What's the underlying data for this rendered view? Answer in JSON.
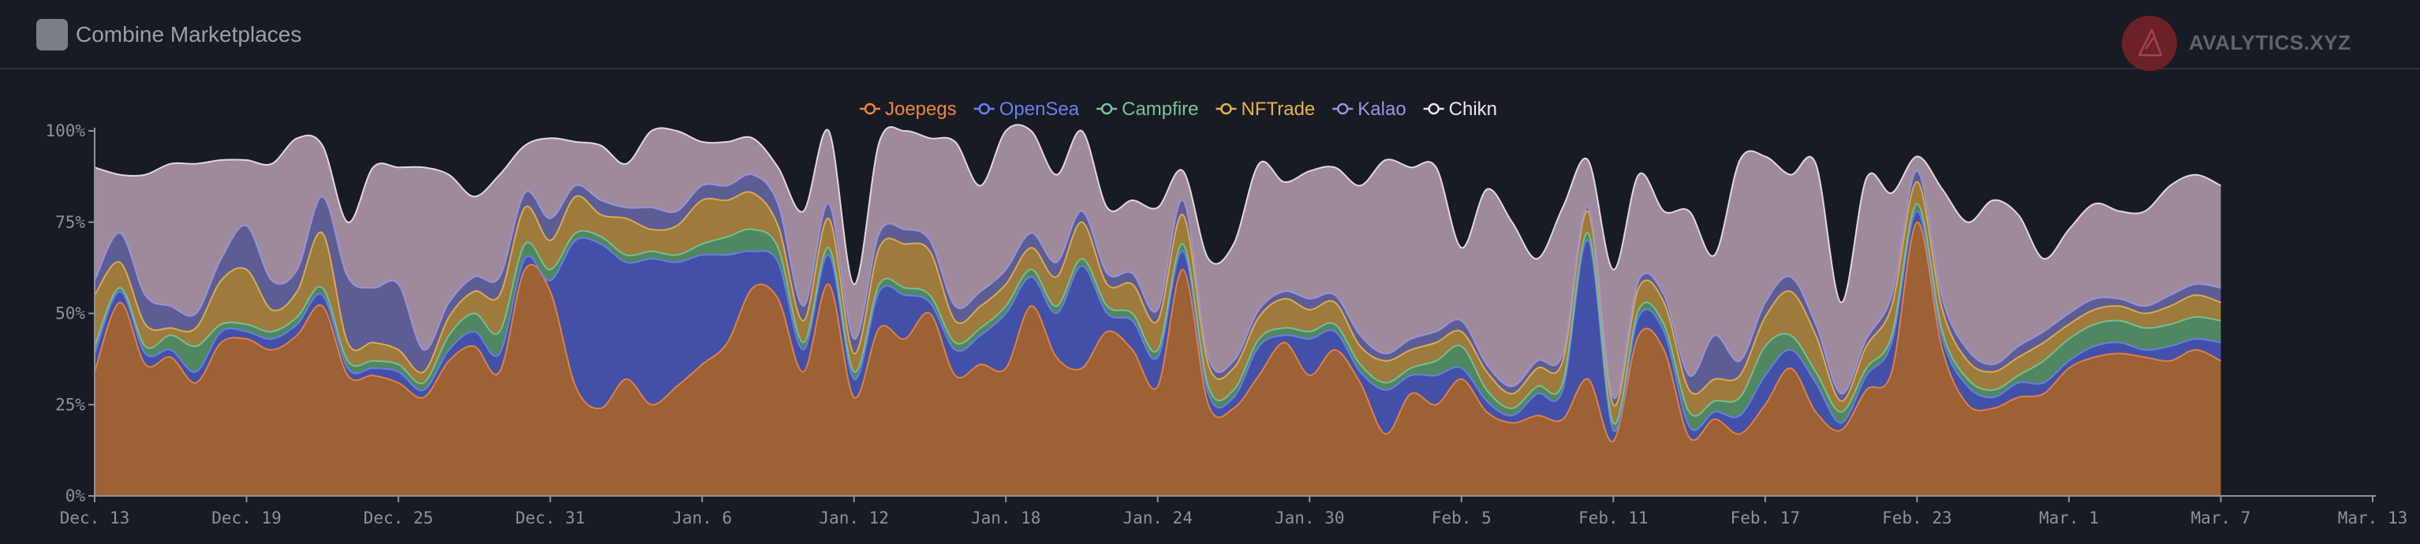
{
  "header": {
    "toggle_label": "Combine Marketplaces",
    "brand_name": "AVALYTICS.XYZ"
  },
  "colors": {
    "background": "#171b22",
    "axis": "#8d9299"
  },
  "chart_data": {
    "type": "area",
    "stacked": true,
    "legend_position": "top-center",
    "x_ticks": [
      "Dec. 13",
      "Dec. 19",
      "Dec. 25",
      "Dec. 31",
      "Jan. 6",
      "Jan. 12",
      "Jan. 18",
      "Jan. 24",
      "Jan. 30",
      "Feb. 5",
      "Feb. 11",
      "Feb. 17",
      "Feb. 23",
      "Mar. 1",
      "Mar. 7",
      "Mar. 13"
    ],
    "x_range_days": [
      0,
      90
    ],
    "x_tick_step_days": 6,
    "y_ticks": [
      "0%",
      "25%",
      "50%",
      "75%",
      "100%"
    ],
    "ylim": [
      0,
      100
    ],
    "x_days": [
      0,
      1,
      2,
      3,
      4,
      5,
      6,
      7,
      8,
      9,
      10,
      11,
      12,
      13,
      14,
      15,
      16,
      17,
      18,
      19,
      20,
      21,
      22,
      23,
      24,
      25,
      26,
      27,
      28,
      29,
      30,
      31,
      32,
      33,
      34,
      35,
      36,
      37,
      38,
      39,
      40,
      41,
      42,
      43,
      44,
      45,
      46,
      47,
      48,
      49,
      50,
      51,
      52,
      53,
      54,
      55,
      56,
      57,
      58,
      59,
      60,
      61,
      62,
      63,
      64,
      65,
      66,
      67,
      68,
      69,
      70,
      71,
      72,
      73,
      74,
      75,
      76,
      77,
      78,
      79,
      80,
      81,
      82,
      83,
      84
    ],
    "series": [
      {
        "name": "Joepegs",
        "color": "#f0843c",
        "fill": "#9c6134",
        "values": [
          34,
          53,
          36,
          38,
          31,
          42,
          43,
          40,
          44,
          52,
          33,
          33,
          31,
          27,
          37,
          41,
          34,
          62,
          56,
          30,
          24,
          32,
          25,
          30,
          36,
          42,
          57,
          54,
          34,
          58,
          27,
          46,
          43,
          50,
          33,
          36,
          35,
          52,
          38,
          35,
          45,
          40,
          30,
          62,
          25,
          24,
          33,
          42,
          33,
          40,
          31,
          17,
          28,
          25,
          32,
          23,
          20,
          22,
          21,
          32,
          15,
          44,
          40,
          16,
          21,
          17,
          25,
          35,
          23,
          18,
          29,
          34,
          75,
          40,
          25,
          24,
          27,
          28,
          35,
          38,
          39,
          38,
          37,
          40,
          37
        ]
      },
      {
        "name": "OpenSea",
        "color": "#6a7ff2",
        "fill": "#4350a8",
        "values": [
          5,
          3,
          3,
          2,
          3,
          3,
          2,
          3,
          3,
          3,
          2,
          2,
          3,
          2,
          3,
          4,
          5,
          3,
          3,
          40,
          45,
          32,
          40,
          34,
          30,
          24,
          10,
          10,
          6,
          8,
          5,
          10,
          12,
          3,
          7,
          8,
          15,
          8,
          12,
          28,
          5,
          8,
          8,
          5,
          3,
          3,
          8,
          2,
          10,
          5,
          3,
          12,
          5,
          8,
          3,
          3,
          2,
          6,
          8,
          38,
          3,
          5,
          5,
          3,
          2,
          5,
          8,
          5,
          8,
          2,
          4,
          8,
          3,
          3,
          5,
          3,
          4,
          3,
          2,
          3,
          3,
          2,
          4,
          3,
          5
        ]
      },
      {
        "name": "Campfire",
        "color": "#74c69d",
        "fill": "#508760",
        "values": [
          2,
          1,
          2,
          4,
          7,
          2,
          2,
          2,
          2,
          2,
          2,
          2,
          2,
          2,
          4,
          5,
          6,
          4,
          3,
          2,
          2,
          2,
          2,
          2,
          3,
          5,
          6,
          4,
          2,
          2,
          2,
          2,
          2,
          2,
          2,
          2,
          2,
          2,
          2,
          2,
          2,
          2,
          2,
          2,
          2,
          2,
          2,
          2,
          2,
          2,
          2,
          2,
          2,
          4,
          6,
          3,
          2,
          2,
          2,
          2,
          2,
          2,
          2,
          4,
          3,
          5,
          8,
          4,
          3,
          3,
          2,
          2,
          2,
          2,
          2,
          2,
          2,
          6,
          6,
          6,
          6,
          6,
          6,
          6,
          6
        ]
      },
      {
        "name": "NFTrade",
        "color": "#e8b04c",
        "fill": "#9c7b3c",
        "values": [
          14,
          7,
          6,
          2,
          5,
          12,
          15,
          6,
          7,
          15,
          5,
          5,
          4,
          3,
          5,
          6,
          10,
          10,
          8,
          10,
          6,
          10,
          6,
          8,
          12,
          10,
          10,
          6,
          6,
          8,
          5,
          10,
          12,
          12,
          6,
          6,
          6,
          6,
          8,
          10,
          6,
          8,
          8,
          8,
          6,
          6,
          6,
          8,
          6,
          6,
          5,
          6,
          5,
          5,
          4,
          5,
          4,
          5,
          6,
          6,
          5,
          6,
          6,
          6,
          6,
          6,
          8,
          12,
          10,
          3,
          6,
          8,
          6,
          6,
          5,
          5,
          5,
          5,
          4,
          4,
          4,
          4,
          5,
          6,
          5
        ]
      },
      {
        "name": "Kalao",
        "color": "#9a95e6",
        "fill": "#5c5d94",
        "values": [
          4,
          8,
          8,
          6,
          4,
          6,
          12,
          8,
          6,
          10,
          18,
          15,
          18,
          6,
          4,
          4,
          5,
          4,
          6,
          3,
          4,
          3,
          6,
          4,
          4,
          4,
          5,
          6,
          4,
          4,
          4,
          4,
          4,
          3,
          4,
          4,
          4,
          4,
          4,
          3,
          3,
          3,
          3,
          4,
          2,
          2,
          2,
          2,
          3,
          2,
          3,
          2,
          3,
          3,
          3,
          2,
          2,
          2,
          2,
          1,
          2,
          2,
          2,
          4,
          12,
          4,
          4,
          4,
          3,
          2,
          2,
          3,
          3,
          3,
          3,
          2,
          3,
          3,
          3,
          3,
          2,
          2,
          3,
          3,
          4
        ]
      },
      {
        "name": "Chikn",
        "color": "#f1e4ee",
        "fill": "#9f8a9b",
        "values": [
          31,
          16,
          33,
          39,
          41,
          27,
          18,
          32,
          36,
          14,
          15,
          33,
          32,
          50,
          35,
          22,
          28,
          13,
          22,
          12,
          15,
          12,
          22,
          22,
          12,
          12,
          10,
          10,
          26,
          20,
          15,
          25,
          35,
          28,
          45,
          29,
          38,
          28,
          24,
          22,
          18,
          20,
          28,
          8,
          27,
          32,
          40,
          30,
          35,
          35,
          41,
          53,
          47,
          45,
          20,
          48,
          45,
          28,
          40,
          13,
          35,
          29,
          23,
          45,
          22,
          55,
          40,
          28,
          44,
          25,
          44,
          28,
          4,
          30,
          35,
          45,
          36,
          20,
          23,
          26,
          24,
          26,
          30,
          30,
          28
        ]
      }
    ]
  }
}
